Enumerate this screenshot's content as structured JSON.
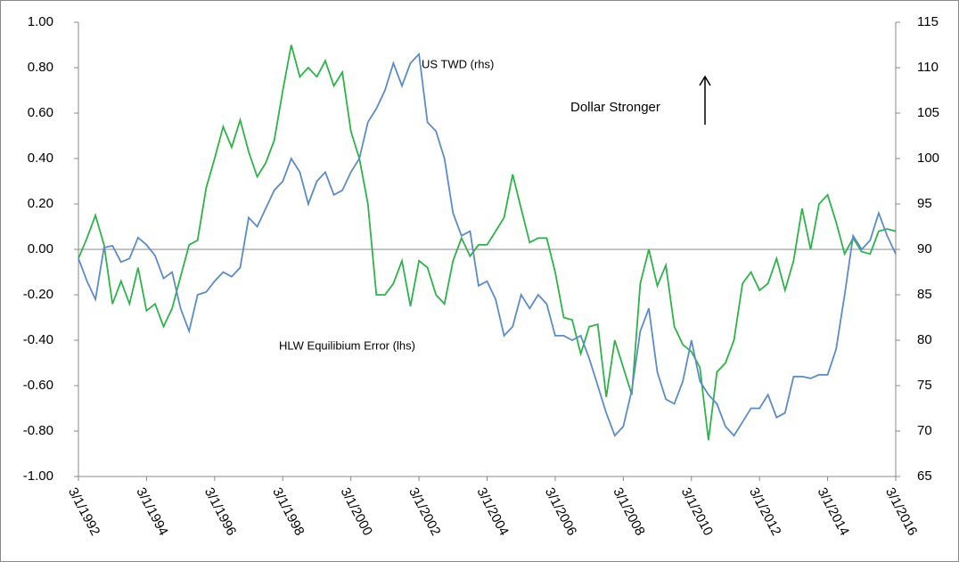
{
  "chart_data": {
    "type": "line",
    "categories": [
      "3/1/1992",
      null,
      null,
      null,
      null,
      null,
      null,
      null,
      "3/1/1994",
      null,
      null,
      null,
      null,
      null,
      null,
      null,
      "3/1/1996",
      null,
      null,
      null,
      null,
      null,
      null,
      null,
      "3/1/1998",
      null,
      null,
      null,
      null,
      null,
      null,
      null,
      "3/1/2000",
      null,
      null,
      null,
      null,
      null,
      null,
      null,
      "3/1/2002",
      null,
      null,
      null,
      null,
      null,
      null,
      null,
      "3/1/2004",
      null,
      null,
      null,
      null,
      null,
      null,
      null,
      "3/1/2006",
      null,
      null,
      null,
      null,
      null,
      null,
      null,
      "3/1/2008",
      null,
      null,
      null,
      null,
      null,
      null,
      null,
      "3/1/2010",
      null,
      null,
      null,
      null,
      null,
      null,
      null,
      "3/1/2012",
      null,
      null,
      null,
      null,
      null,
      null,
      null,
      "3/1/2014",
      null,
      null,
      null,
      null,
      null,
      null,
      null,
      "3/1/2016"
    ],
    "series": [
      {
        "name": "HLW Equilibium Error (lhs)",
        "color": "#2db34a",
        "axis": "y",
        "values": [
          -0.04,
          0.05,
          0.15,
          0.02,
          -0.24,
          -0.14,
          -0.24,
          -0.08,
          -0.27,
          -0.24,
          -0.34,
          -0.26,
          -0.12,
          0.02,
          0.04,
          0.27,
          0.4,
          0.54,
          0.45,
          0.57,
          0.43,
          0.32,
          0.38,
          0.48,
          0.7,
          0.9,
          0.76,
          0.8,
          0.76,
          0.83,
          0.72,
          0.78,
          0.52,
          0.4,
          0.2,
          -0.2,
          -0.2,
          -0.15,
          -0.05,
          -0.25,
          -0.05,
          -0.08,
          -0.2,
          -0.24,
          -0.05,
          0.05,
          -0.03,
          0.02,
          0.02,
          0.08,
          0.14,
          0.33,
          0.18,
          0.03,
          0.05,
          0.05,
          -0.1,
          -0.3,
          -0.31,
          -0.46,
          -0.34,
          -0.33,
          -0.65,
          -0.4,
          -0.52,
          -0.64,
          -0.15,
          0.0,
          -0.16,
          -0.07,
          -0.34,
          -0.42,
          -0.45,
          -0.52,
          -0.84,
          -0.54,
          -0.5,
          -0.4,
          -0.15,
          -0.1,
          -0.18,
          -0.15,
          -0.04,
          -0.18,
          -0.05,
          0.18,
          0.0,
          0.2,
          0.24,
          0.12,
          -0.02,
          0.05,
          -0.01,
          -0.02,
          0.08,
          0.09,
          0.08
        ]
      },
      {
        "name": "US TWD (rhs)",
        "color": "#5b8cc9",
        "axis": "y2",
        "values": [
          89,
          86.5,
          84.5,
          90.2,
          90.4,
          88.6,
          89,
          91.3,
          90.5,
          89.3,
          86.8,
          87.5,
          83.5,
          81,
          85,
          85.3,
          86.5,
          87.5,
          87,
          88,
          93.5,
          92.5,
          94.5,
          96.5,
          97.5,
          100,
          98.5,
          95,
          97.5,
          98.5,
          96,
          96.5,
          98.5,
          100,
          104,
          105.5,
          107.5,
          110.5,
          108,
          110.5,
          111.5,
          104,
          103,
          100,
          94,
          91.5,
          92,
          86,
          86.5,
          84.5,
          80.5,
          81.5,
          85,
          83.5,
          85,
          84,
          80.5,
          80.5,
          80,
          80.5,
          78,
          75,
          72,
          69.5,
          70.5,
          74.5,
          81,
          83.5,
          76.5,
          73.5,
          73,
          75.5,
          80,
          75.5,
          74,
          73,
          70.5,
          69.5,
          71,
          72.5,
          72.5,
          74,
          71.5,
          72,
          76,
          76,
          75.8,
          76.2,
          76.2,
          79,
          85,
          91.5,
          90,
          91,
          94,
          91.5,
          89.5
        ]
      }
    ],
    "ylim": [
      -1,
      1
    ],
    "yticks": [
      {
        "value": -1,
        "label": "-1.00"
      },
      {
        "value": -0.8,
        "label": "-0.80"
      },
      {
        "value": -0.6,
        "label": "-0.60"
      },
      {
        "value": -0.4,
        "label": "-0.40"
      },
      {
        "value": -0.2,
        "label": "-0.20"
      },
      {
        "value": 0,
        "label": "0.00"
      },
      {
        "value": 0.2,
        "label": "0.20"
      },
      {
        "value": 0.4,
        "label": "0.40"
      },
      {
        "value": 0.6,
        "label": "0.60"
      },
      {
        "value": 0.8,
        "label": "0.80"
      },
      {
        "value": 1,
        "label": "1.00"
      }
    ],
    "y2lim": [
      65,
      115
    ],
    "y2ticks": [
      65,
      70,
      75,
      80,
      85,
      90,
      95,
      100,
      105,
      110,
      115
    ],
    "annotations": [
      "Dollar Stronger"
    ],
    "zero_line": true
  }
}
